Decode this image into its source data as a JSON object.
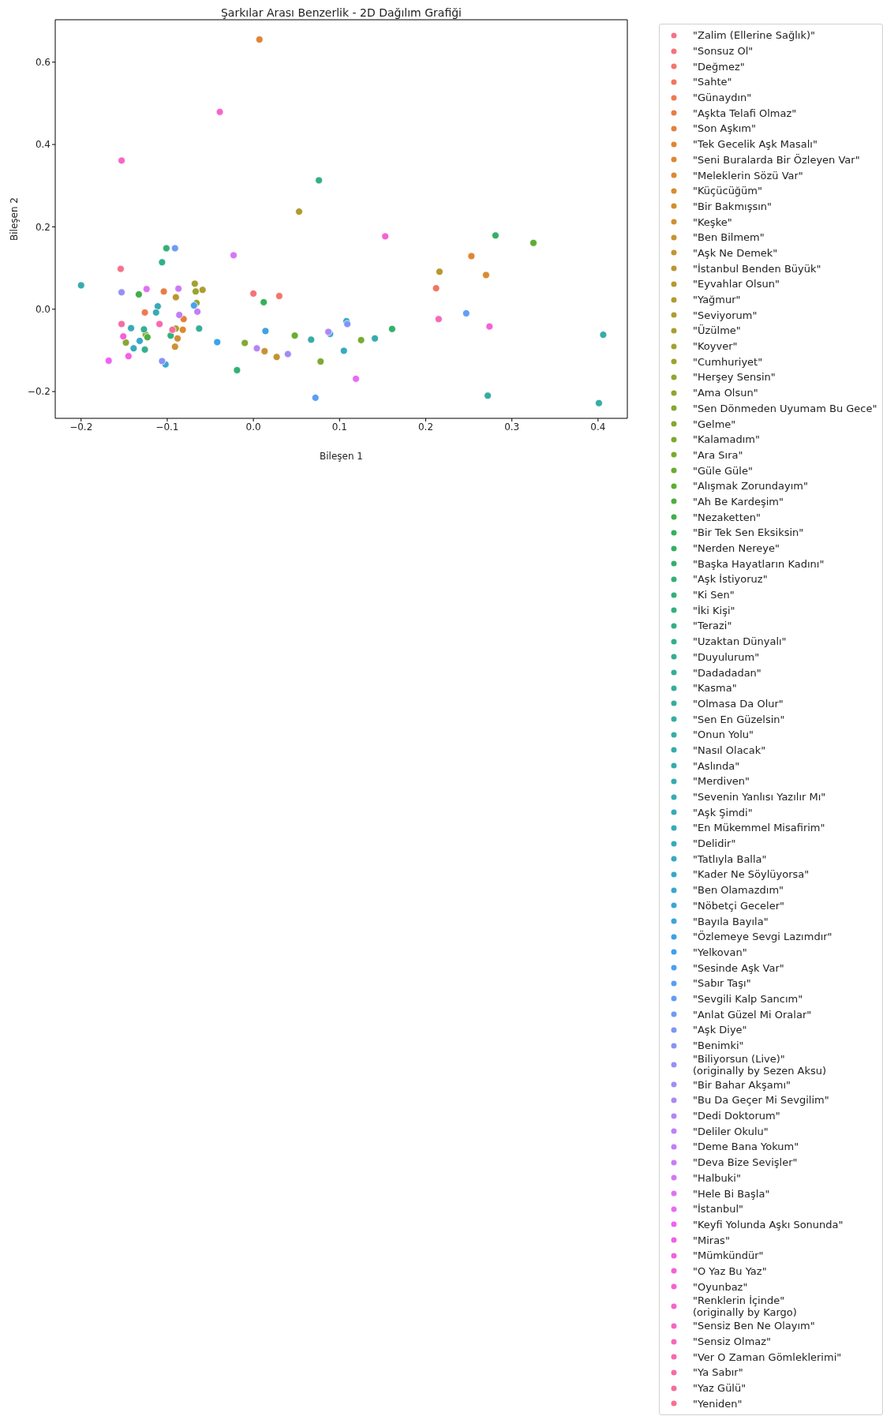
{
  "chart_data": {
    "type": "scatter",
    "title": "Şarkılar Arası Benzerlik - 2D Dağılım Grafiği",
    "xlabel": "Bileşen 1",
    "ylabel": "Bileşen 2",
    "xlim": [
      -0.23,
      0.434
    ],
    "ylim": [
      -0.265,
      0.703
    ],
    "xticks": [
      {
        "value": -0.2,
        "label": "−0.2"
      },
      {
        "value": -0.1,
        "label": "−0.1"
      },
      {
        "value": 0,
        "label": "0.0"
      },
      0.1,
      0.2,
      0.3,
      0.4
    ],
    "yticks": [
      {
        "value": -0.2,
        "label": "−0.2"
      },
      {
        "value": 0,
        "label": "0.0"
      },
      0.2,
      0.4,
      0.6
    ],
    "marker": "circle",
    "legend": "right",
    "series": [
      {
        "name": "\"Zalim (Ellerine Sağlık)\"",
        "color": "#f77189",
        "x": [
          -0.154
        ],
        "values": [
          0.098
        ]
      },
      {
        "name": "\"Sonsuz Ol\"",
        "color": "#f5737b",
        "x": [
          0.0
        ],
        "values": [
          0.038
        ]
      },
      {
        "name": "\"Değmez\"",
        "color": "#f3756d",
        "x": [
          0.03
        ],
        "values": [
          0.032
        ]
      },
      {
        "name": "\"Sahte\"",
        "color": "#f0775f",
        "x": [
          0.212
        ],
        "values": [
          0.051
        ]
      },
      {
        "name": "\"Günaydın\"",
        "color": "#ed7a52",
        "x": [
          -0.126
        ],
        "values": [
          -0.008
        ]
      },
      {
        "name": "\"Aşkta Telafi Olmaz\"",
        "color": "#e87d46",
        "x": [
          -0.104
        ],
        "values": [
          0.043
        ]
      },
      {
        "name": "\"Son Aşkım\"",
        "color": "#e4803d",
        "x": [
          -0.081
        ],
        "values": [
          -0.024
        ]
      },
      {
        "name": "\"Tek Gecelik Aşk Masalı\"",
        "color": "#e08436",
        "x": [
          0.007
        ],
        "values": [
          0.655
        ]
      },
      {
        "name": "\"Seni Buralarda Bir Özleyen Var\"",
        "color": "#de8734",
        "x": [
          0.253
        ],
        "values": [
          0.129
        ]
      },
      {
        "name": "\"Meleklerin Sözü Var\"",
        "color": "#dc8932",
        "x": [
          -0.082
        ],
        "values": [
          -0.05
        ]
      },
      {
        "name": "\"Küçücüğüm\"",
        "color": "#d78c32",
        "x": [
          0.27
        ],
        "values": [
          0.083
        ]
      },
      {
        "name": "\"Bir Bakmışsın\"",
        "color": "#d28e32",
        "x": [
          -0.088
        ],
        "values": [
          -0.071
        ]
      },
      {
        "name": "\"Keşke\"",
        "color": "#cc9132",
        "x": [
          -0.091
        ],
        "values": [
          -0.091
        ]
      },
      {
        "name": "\"Ben Bilmem\"",
        "color": "#c69332",
        "x": [
          0.013
        ],
        "values": [
          -0.102
        ]
      },
      {
        "name": "\"Aşk Ne Demek\"",
        "color": "#c19532",
        "x": [
          0.027
        ],
        "values": [
          -0.116
        ]
      },
      {
        "name": "\"İstanbul Benden Büyük\"",
        "color": "#bb9731",
        "x": [
          -0.09
        ],
        "values": [
          0.029
        ]
      },
      {
        "name": "\"Eyvahlar Olsun\"",
        "color": "#b59931",
        "x": [
          0.216
        ],
        "values": [
          0.091
        ]
      },
      {
        "name": "\"Yağmur\"",
        "color": "#b09b31",
        "x": [
          0.053
        ],
        "values": [
          0.237
        ]
      },
      {
        "name": "\"Seviyorum\"",
        "color": "#ae9d31",
        "x": [
          -0.059
        ],
        "values": [
          0.047
        ]
      },
      {
        "name": "\"Üzülme\"",
        "color": "#a89f31",
        "x": [
          -0.09
        ],
        "values": [
          -0.047
        ]
      },
      {
        "name": "\"Koyver\"",
        "color": "#a2a131",
        "x": [
          -0.068
        ],
        "values": [
          0.062
        ]
      },
      {
        "name": "\"Cumhuriyet\"",
        "color": "#9ca231",
        "x": [
          -0.067
        ],
        "values": [
          0.043
        ]
      },
      {
        "name": "\"Herşey Sensin\"",
        "color": "#96a431",
        "x": [
          -0.066
        ],
        "values": [
          0.015
        ]
      },
      {
        "name": "\"Ama Olsun\"",
        "color": "#8ea631",
        "x": [
          -0.125
        ],
        "values": [
          -0.062
        ]
      },
      {
        "name": "\"Sen Dönmeden Uyumam Bu Gece\"",
        "color": "#88a731",
        "x": [
          -0.148
        ],
        "values": [
          -0.081
        ]
      },
      {
        "name": "\"Gelme\"",
        "color": "#82a931",
        "x": [
          -0.01
        ],
        "values": [
          -0.082
        ]
      },
      {
        "name": "\"Kalamadım\"",
        "color": "#7caa31",
        "x": [
          0.078
        ],
        "values": [
          -0.127
        ]
      },
      {
        "name": "\"Ara Sıra\"",
        "color": "#77ab31",
        "x": [
          0.125
        ],
        "values": [
          -0.075
        ]
      },
      {
        "name": "\"Güle Güle\"",
        "color": "#6aac31",
        "x": [
          0.048
        ],
        "values": [
          -0.064
        ]
      },
      {
        "name": "\"Alışmak Zorundayım\"",
        "color": "#5cad32",
        "x": [
          0.325
        ],
        "values": [
          0.161
        ]
      },
      {
        "name": "\"Ah Be Kardeşim\"",
        "color": "#4fae3f",
        "x": [
          -0.123
        ],
        "values": [
          -0.068
        ]
      },
      {
        "name": "\"Nezaketten\"",
        "color": "#40af4c",
        "x": [
          -0.133
        ],
        "values": [
          0.036
        ]
      },
      {
        "name": "\"Bir Tek Sen Eksiksin\"",
        "color": "#35b05a",
        "x": [
          0.012
        ],
        "values": [
          0.017
        ]
      },
      {
        "name": "\"Nerden Nereye\"",
        "color": "#34b064",
        "x": [
          0.281
        ],
        "values": [
          0.179
        ]
      },
      {
        "name": "\"Başka Hayatların Kadını\"",
        "color": "#33b06d",
        "x": [
          0.161
        ],
        "values": [
          -0.048
        ]
      },
      {
        "name": "\"Aşk İstiyoruz\"",
        "color": "#33b075",
        "x": [
          -0.019
        ],
        "values": [
          -0.148
        ]
      },
      {
        "name": "\"Ki Sen\"",
        "color": "#33b07a",
        "x": [
          -0.101
        ],
        "values": [
          0.148
        ]
      },
      {
        "name": "\"İki Kişi\"",
        "color": "#33b07f",
        "x": [
          -0.096
        ],
        "values": [
          -0.064
        ]
      },
      {
        "name": "\"Terazi\"",
        "color": "#34af85",
        "x": [
          0.076
        ],
        "values": [
          0.313
        ]
      },
      {
        "name": "\"Uzaktan Dünyalı\"",
        "color": "#34af8b",
        "x": [
          -0.106
        ],
        "values": [
          0.114
        ]
      },
      {
        "name": "\"Duyulurum\"",
        "color": "#34ae90",
        "x": [
          -0.126
        ],
        "values": [
          -0.098
        ]
      },
      {
        "name": "\"Dadadadan\"",
        "color": "#35ae95",
        "x": [
          -0.127
        ],
        "values": [
          -0.049
        ]
      },
      {
        "name": "\"Kasma\"",
        "color": "#35ae9a",
        "x": [
          -0.063
        ],
        "values": [
          -0.047
        ]
      },
      {
        "name": "\"Olmasa Da Olur\"",
        "color": "#35ad9f",
        "x": [
          0.272
        ],
        "values": [
          -0.21
        ]
      },
      {
        "name": "\"Sen En Güzelsin\"",
        "color": "#36ada3",
        "x": [
          0.401
        ],
        "values": [
          -0.228
        ]
      },
      {
        "name": "\"Onun Yolu\"",
        "color": "#36ada4",
        "x": [
          0.406
        ],
        "values": [
          -0.062
        ]
      },
      {
        "name": "\"Nasıl Olacak\"",
        "color": "#36aca8",
        "x": [
          0.067
        ],
        "values": [
          -0.074
        ]
      },
      {
        "name": "\"Aslında\"",
        "color": "#36acac",
        "x": [
          0.141
        ],
        "values": [
          -0.071
        ]
      },
      {
        "name": "\"Merdiven\"",
        "color": "#37abb0",
        "x": [
          -0.2
        ],
        "values": [
          0.058
        ]
      },
      {
        "name": "\"Sevenin Yanlısı Yazılır Mı\"",
        "color": "#37abb4",
        "x": [
          -0.111
        ],
        "values": [
          0.007
        ]
      },
      {
        "name": "\"Aşk Şimdi\"",
        "color": "#37aab8",
        "x": [
          -0.113
        ],
        "values": [
          -0.008
        ]
      },
      {
        "name": "\"En Mükemmel Misafirim\"",
        "color": "#37aabb",
        "x": [
          -0.142
        ],
        "values": [
          -0.046
        ]
      },
      {
        "name": "\"Delidir\"",
        "color": "#38a9be",
        "x": [
          -0.139
        ],
        "values": [
          -0.095
        ]
      },
      {
        "name": "\"Tatlıyla Balla\"",
        "color": "#38a9c2",
        "x": [
          0.105
        ],
        "values": [
          -0.101
        ]
      },
      {
        "name": "\"Kader Ne Söylüyorsa\"",
        "color": "#38a9c5",
        "x": [
          0.108
        ],
        "values": [
          -0.029
        ]
      },
      {
        "name": "\"Ben Olamazdım\"",
        "color": "#39a8cc",
        "x": [
          -0.132
        ],
        "values": [
          -0.077
        ]
      },
      {
        "name": "\"Nöbetçi Geceler\"",
        "color": "#3aa7d3",
        "x": [
          -0.102
        ],
        "values": [
          -0.134
        ]
      },
      {
        "name": "\"Bayıla Bayıla\"",
        "color": "#3ba5db",
        "x": [
          0.089
        ],
        "values": [
          -0.06
        ]
      },
      {
        "name": "\"Özlemeye Sevgi Lazımdır\"",
        "color": "#3ba3e3",
        "x": [
          0.014
        ],
        "values": [
          -0.053
        ]
      },
      {
        "name": "\"Yelkovan\"",
        "color": "#3ca2ec",
        "x": [
          -0.042
        ],
        "values": [
          -0.08
        ]
      },
      {
        "name": "\"Sesinde Aşk Var\"",
        "color": "#4aa0f0",
        "x": [
          -0.069
        ],
        "values": [
          0.009
        ]
      },
      {
        "name": "\"Sabır Taşı\"",
        "color": "#5a9ef2",
        "x": [
          0.072
        ],
        "values": [
          -0.215
        ]
      },
      {
        "name": "\"Sevgili Kalp Sancım\"",
        "color": "#649df3",
        "x": [
          0.247
        ],
        "values": [
          -0.01
        ]
      },
      {
        "name": "\"Anlat Güzel Mi Oralar\"",
        "color": "#6e9bf4",
        "x": [
          -0.091
        ],
        "values": [
          0.148
        ]
      },
      {
        "name": "\"Aşk Diye\"",
        "color": "#7d97f4",
        "x": [
          0.109
        ],
        "values": [
          -0.036
        ]
      },
      {
        "name": "\"Benimki\"",
        "color": "#8a93f4",
        "x": [
          -0.106
        ],
        "values": [
          -0.126
        ]
      },
      {
        "name": "\"Biliyorsun (Live)\"\n(originally by Sezen Aksu)",
        "color": "#9790f4",
        "x": [
          -0.153
        ],
        "values": [
          0.041
        ]
      },
      {
        "name": "\"Bir Bahar Akşamı\"",
        "color": "#a38cf4",
        "x": [
          0.04
        ],
        "values": [
          -0.109
        ]
      },
      {
        "name": "\"Bu Da Geçer Mi Sevgilim\"",
        "color": "#ad88f4",
        "x": [
          0.087
        ],
        "values": [
          -0.055
        ]
      },
      {
        "name": "\"Dedi Doktorum\"",
        "color": "#b685f4",
        "x": [
          0.004
        ],
        "values": [
          -0.095
        ]
      },
      {
        "name": "\"Deliler Okulu\"",
        "color": "#bf81f4",
        "x": [
          -0.086
        ],
        "values": [
          -0.014
        ]
      },
      {
        "name": "\"Deme Bana Yokum\"",
        "color": "#c67df4",
        "x": [
          -0.065
        ],
        "values": [
          -0.006
        ]
      },
      {
        "name": "\"Deva Bize Sevişler\"",
        "color": "#cc7af4",
        "x": [
          -0.087
        ],
        "values": [
          0.05
        ]
      },
      {
        "name": "\"Halbuki\"",
        "color": "#d577f4",
        "x": [
          -0.023
        ],
        "values": [
          0.131
        ]
      },
      {
        "name": "\"Hele Bi Başla\"",
        "color": "#df72f4",
        "x": [
          -0.124
        ],
        "values": [
          0.049
        ]
      },
      {
        "name": "\"İstanbul\"",
        "color": "#e96cf4",
        "x": [
          0.119
        ],
        "values": [
          -0.169
        ]
      },
      {
        "name": "\"Keyfi Yolunda Aşkı Sonunda\"",
        "color": "#f161f4",
        "x": [
          -0.168
        ],
        "values": [
          -0.125
        ]
      },
      {
        "name": "\"Miras\"",
        "color": "#f35fe8",
        "x": [
          -0.145
        ],
        "values": [
          -0.114
        ]
      },
      {
        "name": "\"Mümkündür\"",
        "color": "#f460dd",
        "x": [
          -0.151
        ],
        "values": [
          -0.066
        ]
      },
      {
        "name": "\"O Yaz Bu Yaz\"",
        "color": "#f462d7",
        "x": [
          0.274
        ],
        "values": [
          -0.042
        ]
      },
      {
        "name": "\"Oyunbaz\"",
        "color": "#f563d1",
        "x": [
          0.153
        ],
        "values": [
          0.177
        ]
      },
      {
        "name": "\"Renklerin İçinde\"\n(originally by Kargo)",
        "color": "#f565cc",
        "x": [
          -0.039
        ],
        "values": [
          0.479
        ]
      },
      {
        "name": "\"Sensiz Ben Ne Olayım\"",
        "color": "#f567c3",
        "x": [
          -0.153
        ],
        "values": [
          0.361
        ]
      },
      {
        "name": "\"Sensiz Olmaz\"",
        "color": "#f569b9",
        "x": [
          0.215
        ],
        "values": [
          -0.024
        ]
      },
      {
        "name": "\"Ver O Zaman Gömleklerimi\"",
        "color": "#f66aaf",
        "x": [
          -0.109
        ],
        "values": [
          -0.036
        ]
      },
      {
        "name": "\"Ya Sabır\"",
        "color": "#f66ba6",
        "x": [
          -0.153
        ],
        "values": [
          -0.036
        ]
      },
      {
        "name": "\"Yaz Gülü\"",
        "color": "#f66c9e",
        "x": [
          -0.094
        ],
        "values": [
          -0.05
        ]
      },
      {
        "name": "\"Yeniden\"",
        "color": "#f76f8f",
        "x": [
          null
        ],
        "values": [
          null
        ]
      }
    ]
  }
}
